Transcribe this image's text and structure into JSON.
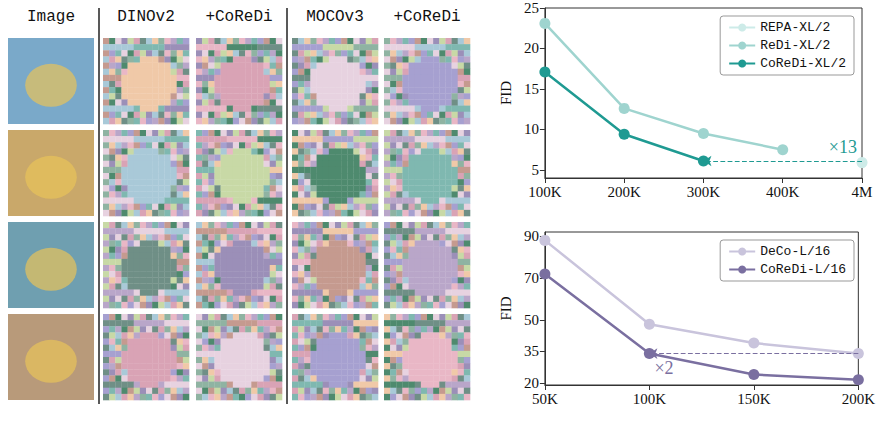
{
  "figure": {
    "column_headers": [
      "Image",
      "DINOv2",
      "+CoReDi",
      "MOCOv3",
      "+CoReDi"
    ],
    "rows": 4
  },
  "chart_data": [
    {
      "type": "line",
      "y_label": "FID",
      "categories": [
        "100K",
        "200K",
        "300K",
        "400K",
        "4M"
      ],
      "series": [
        {
          "name": "REPA-XL/2",
          "color": "#cdebe8",
          "values": [
            null,
            null,
            null,
            null,
            5.9
          ]
        },
        {
          "name": "ReDi-XL/2",
          "color": "#9fd4cf",
          "values": [
            23.1,
            12.6,
            9.5,
            7.5,
            null
          ]
        },
        {
          "name": "CoReDi-XL/2",
          "color": "#1f9a92",
          "values": [
            17.1,
            9.4,
            6.1,
            null,
            null
          ]
        }
      ],
      "annotations": [
        {
          "text": "×13",
          "from": "4M",
          "to": "300K",
          "y": 6.1,
          "series": "CoReDi-XL/2"
        }
      ],
      "ylim": [
        4,
        25
      ],
      "yticks": [
        5,
        10,
        15,
        20,
        25
      ],
      "grid": false,
      "legend": "upper right",
      "marker": "circle",
      "line_style": "solid"
    },
    {
      "type": "line",
      "y_label": "FID",
      "categories": [
        "50K",
        "100K",
        "150K",
        "200K"
      ],
      "series": [
        {
          "name": "DeCo-L/16",
          "color": "#c9c4dc",
          "values": [
            88,
            48,
            39,
            34
          ]
        },
        {
          "name": "CoReDi-L/16",
          "color": "#7a6fa0",
          "values": [
            72,
            34,
            24,
            21.5
          ]
        }
      ],
      "annotations": [
        {
          "text": "×2",
          "from": "200K",
          "to": "100K",
          "y": 34,
          "series": "CoReDi-L/16"
        }
      ],
      "ylim": [
        19,
        92
      ],
      "yticks": [
        20,
        35,
        50,
        70,
        90
      ],
      "grid": false,
      "legend": "upper right",
      "marker": "circle",
      "line_style": "solid"
    }
  ]
}
